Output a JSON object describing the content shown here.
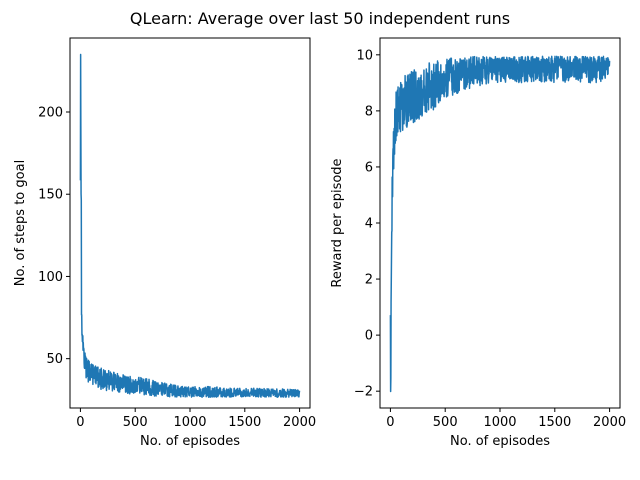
{
  "figure": {
    "title": "QLearn: Average over last 50 independent runs"
  },
  "colors": {
    "series": "#1f77b4",
    "axis": "#000000",
    "background": "#ffffff"
  },
  "chart_data": [
    {
      "type": "line",
      "title": "",
      "xlabel": "No. of episodes",
      "ylabel": "No. of steps to goal",
      "xlim": [
        -95,
        2095
      ],
      "ylim": [
        20,
        245
      ],
      "xticks": [
        0,
        500,
        1000,
        1500,
        2000
      ],
      "xtick_labels": [
        "0",
        "500",
        "1000",
        "1500",
        "2000"
      ],
      "yticks": [
        50,
        100,
        150,
        200
      ],
      "ytick_labels": [
        "50",
        "100",
        "150",
        "200"
      ],
      "grid": false,
      "legend": null,
      "series": [
        {
          "x": [
            0,
            2,
            4,
            6,
            8,
            10,
            15,
            20,
            30,
            40,
            50,
            60,
            80,
            100,
            130,
            160,
            200,
            250,
            300,
            350,
            400,
            450,
            500,
            550,
            600,
            650,
            700,
            750,
            800,
            850,
            900,
            950,
            1000,
            1100,
            1200,
            1300,
            1400,
            1500,
            1600,
            1700,
            1800,
            1900,
            2000
          ],
          "y": [
            160,
            235,
            200,
            175,
            150,
            80,
            70,
            65,
            55,
            50,
            47,
            45,
            43,
            42,
            40,
            39,
            38,
            37,
            36,
            35.5,
            35,
            34.5,
            34,
            33.5,
            33,
            32.5,
            32,
            31.5,
            31,
            30.5,
            30,
            30,
            29.5,
            29.5,
            29.5,
            29,
            29,
            29,
            29,
            29,
            29,
            29,
            29
          ],
          "band_upper": [
            160,
            235,
            220,
            180,
            160,
            82,
            72,
            66,
            58,
            54,
            52,
            50,
            49,
            48,
            46,
            45,
            44,
            43,
            42,
            41,
            40,
            39.5,
            39,
            38.5,
            38,
            37,
            36,
            35.5,
            35,
            34,
            33.5,
            33,
            33,
            33,
            33,
            32.5,
            32,
            32,
            32,
            32,
            32,
            31.5,
            31
          ],
          "band_lower": [
            155,
            225,
            160,
            150,
            140,
            70,
            60,
            55,
            45,
            40,
            37,
            36,
            35,
            34,
            33,
            32,
            31,
            30.5,
            30,
            29.5,
            29,
            28.5,
            28.5,
            28,
            28,
            27.5,
            27,
            27,
            26.5,
            26.5,
            26.5,
            26.5,
            26.5,
            26.5,
            26.5,
            26.5,
            26.5,
            26.5,
            26.5,
            26.5,
            26.5,
            26.5,
            26.5
          ]
        }
      ]
    },
    {
      "type": "line",
      "title": "",
      "xlabel": "No. of episodes",
      "ylabel": "Reward per episode",
      "xlim": [
        -95,
        2095
      ],
      "ylim": [
        -2.6,
        10.6
      ],
      "xticks": [
        0,
        500,
        1000,
        1500,
        2000
      ],
      "xtick_labels": [
        "0",
        "500",
        "1000",
        "1500",
        "2000"
      ],
      "yticks": [
        -2,
        0,
        2,
        4,
        6,
        8,
        10
      ],
      "ytick_labels": [
        "−2",
        "0",
        "2",
        "4",
        "6",
        "8",
        "10"
      ],
      "grid": false,
      "legend": null,
      "series": [
        {
          "x": [
            0,
            2,
            4,
            6,
            8,
            10,
            15,
            20,
            30,
            40,
            50,
            60,
            80,
            100,
            130,
            160,
            200,
            250,
            300,
            350,
            400,
            450,
            500,
            550,
            600,
            650,
            700,
            750,
            800,
            850,
            900,
            950,
            1000,
            1100,
            1200,
            1300,
            1400,
            1500,
            1600,
            1700,
            1800,
            1900,
            2000
          ],
          "y": [
            1.0,
            -2.0,
            -1.5,
            0.5,
            2.0,
            3.5,
            4.5,
            5.5,
            6.5,
            7.2,
            7.6,
            7.8,
            8.0,
            8.1,
            8.2,
            8.3,
            8.4,
            8.5,
            8.6,
            8.8,
            8.9,
            9.0,
            9.1,
            9.2,
            9.3,
            9.35,
            9.4,
            9.45,
            9.5,
            9.5,
            9.55,
            9.6,
            9.6,
            9.65,
            9.65,
            9.65,
            9.65,
            9.65,
            9.65,
            9.65,
            9.65,
            9.65,
            9.65
          ],
          "band_upper": [
            1.5,
            -1.5,
            0.0,
            1.5,
            3.0,
            4.8,
            5.5,
            6.8,
            7.8,
            8.5,
            8.8,
            8.9,
            9.0,
            9.2,
            9.3,
            9.4,
            9.5,
            9.5,
            9.6,
            9.7,
            9.8,
            9.8,
            9.85,
            9.9,
            9.9,
            9.9,
            9.9,
            9.95,
            9.95,
            9.95,
            9.95,
            9.95,
            9.95,
            9.95,
            9.95,
            9.95,
            9.95,
            9.95,
            9.95,
            9.95,
            9.95,
            9.95,
            9.95
          ],
          "band_lower": [
            0.5,
            -2.1,
            -1.8,
            -0.5,
            1.0,
            2.5,
            3.5,
            4.5,
            5.8,
            6.5,
            6.8,
            7.0,
            7.0,
            7.2,
            7.3,
            7.4,
            7.5,
            7.6,
            7.8,
            7.9,
            8.0,
            8.2,
            8.4,
            8.5,
            8.6,
            8.7,
            8.8,
            8.8,
            8.9,
            8.9,
            9.0,
            9.0,
            9.0,
            9.0,
            9.0,
            9.0,
            9.0,
            9.0,
            9.0,
            9.0,
            9.0,
            9.0,
            9.0
          ]
        }
      ]
    }
  ]
}
